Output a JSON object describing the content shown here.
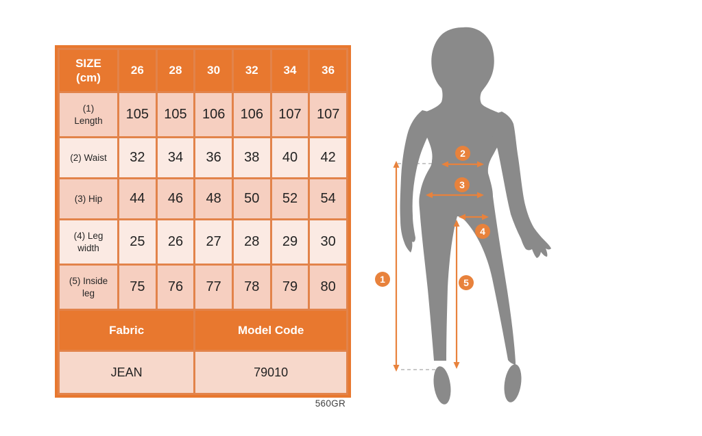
{
  "size_chart": {
    "header_label": "SIZE\n(cm)",
    "sizes": [
      "26",
      "28",
      "30",
      "32",
      "34",
      "36"
    ],
    "rows": [
      {
        "label": "(1)\nLength",
        "values": [
          "105",
          "105",
          "106",
          "106",
          "107",
          "107"
        ],
        "shade": "dark",
        "tall": true
      },
      {
        "label": "(2) Waist",
        "values": [
          "32",
          "34",
          "36",
          "38",
          "40",
          "42"
        ],
        "shade": "light",
        "tall": false
      },
      {
        "label": "(3) Hip",
        "values": [
          "44",
          "46",
          "48",
          "50",
          "52",
          "54"
        ],
        "shade": "dark",
        "tall": false
      },
      {
        "label": "(4) Leg\nwidth",
        "values": [
          "25",
          "26",
          "27",
          "28",
          "29",
          "30"
        ],
        "shade": "light",
        "tall": true
      },
      {
        "label": "(5) Inside\nleg",
        "values": [
          "75",
          "76",
          "77",
          "78",
          "79",
          "80"
        ],
        "shade": "dark",
        "tall": true
      }
    ],
    "footer": {
      "fabric_label": "Fabric",
      "model_code_label": "Model Code",
      "fabric_value": "JEAN",
      "model_code_value": "79010"
    },
    "note": "560GR"
  },
  "figure": {
    "badge_labels": [
      "1",
      "2",
      "3",
      "4",
      "5"
    ],
    "colors": {
      "silhouette": "#8a8a8a",
      "accent_orange": "#e8823c",
      "dashed_grey": "#b5b5b5"
    }
  },
  "colors": {
    "table_orange": "#e8782f",
    "grid_orange": "#e2834a",
    "row_dark": "#f6cfc0",
    "row_light": "#fbeae3",
    "row_footer": "#f7d8cb"
  }
}
